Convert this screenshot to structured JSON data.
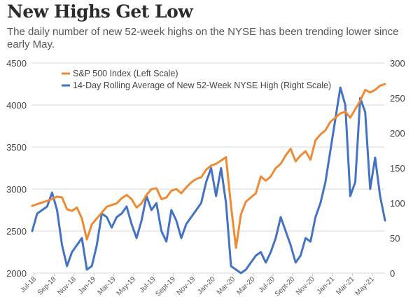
{
  "header": {
    "title": "New Highs Get Low",
    "subtitle": "The daily number of new 52-week highs on the NYSE has been trending lower since early May."
  },
  "chart_data": {
    "type": "line",
    "title": "New Highs Get Low",
    "subtitle": "The daily number of new 52-week highs on the NYSE has been trending lower since early May.",
    "xlabel": "",
    "ylabel_left": "",
    "ylabel_right": "",
    "grid": true,
    "legend_position": "top-left",
    "x_tick_labels": [
      "Jul-18",
      "Sep-18",
      "Nov-18",
      "Jan-19",
      "Mar-19",
      "May-19",
      "Jul-19",
      "Sept-19",
      "Nov-19",
      "Jan-20",
      "Mar-20",
      "Mar-20",
      "Jul-20",
      "Sept-20",
      "Nov-20",
      "Jan-21",
      "Mar-21",
      "May-21"
    ],
    "left_axis": {
      "ticks": [
        2000,
        2500,
        3000,
        3500,
        4000,
        4500
      ],
      "ylim": [
        2000,
        4500
      ]
    },
    "right_axis": {
      "ticks": [
        0,
        50,
        100,
        150,
        200,
        250,
        300
      ],
      "ylim": [
        0,
        300
      ]
    },
    "x_step": "half-month",
    "x_start": "Jul-18",
    "series": [
      {
        "name": "S&P 500 Index (Left Scale)",
        "axis": "left",
        "color": "#ED8B35",
        "values": [
          2800,
          2820,
          2840,
          2860,
          2880,
          2910,
          2900,
          2760,
          2740,
          2780,
          2650,
          2400,
          2580,
          2650,
          2720,
          2790,
          2810,
          2830,
          2890,
          2930,
          2880,
          2780,
          2830,
          2930,
          3000,
          3010,
          2880,
          2900,
          2980,
          3000,
          2950,
          3020,
          3080,
          3120,
          3140,
          3230,
          3280,
          3300,
          3340,
          3380,
          2800,
          2300,
          2700,
          2850,
          2900,
          2950,
          3150,
          3100,
          3150,
          3250,
          3300,
          3400,
          3480,
          3330,
          3400,
          3450,
          3350,
          3580,
          3650,
          3700,
          3800,
          3850,
          3900,
          3920,
          3850,
          3950,
          4050,
          4180,
          4150,
          4180,
          4230,
          4250
        ]
      },
      {
        "name": "14-Day Rolling Average of New 52-Week NYSE High (Right Scale)",
        "axis": "right",
        "color": "#4472C4",
        "values": [
          60,
          85,
          90,
          95,
          115,
          90,
          40,
          10,
          30,
          40,
          50,
          5,
          10,
          40,
          85,
          80,
          65,
          80,
          85,
          95,
          70,
          50,
          75,
          110,
          90,
          100,
          60,
          45,
          90,
          75,
          50,
          70,
          80,
          90,
          100,
          130,
          150,
          110,
          150,
          100,
          10,
          5,
          0,
          5,
          15,
          25,
          30,
          15,
          30,
          50,
          80,
          60,
          40,
          15,
          25,
          50,
          45,
          80,
          100,
          130,
          175,
          220,
          265,
          240,
          110,
          130,
          250,
          230,
          120,
          165,
          110,
          75
        ]
      }
    ]
  }
}
